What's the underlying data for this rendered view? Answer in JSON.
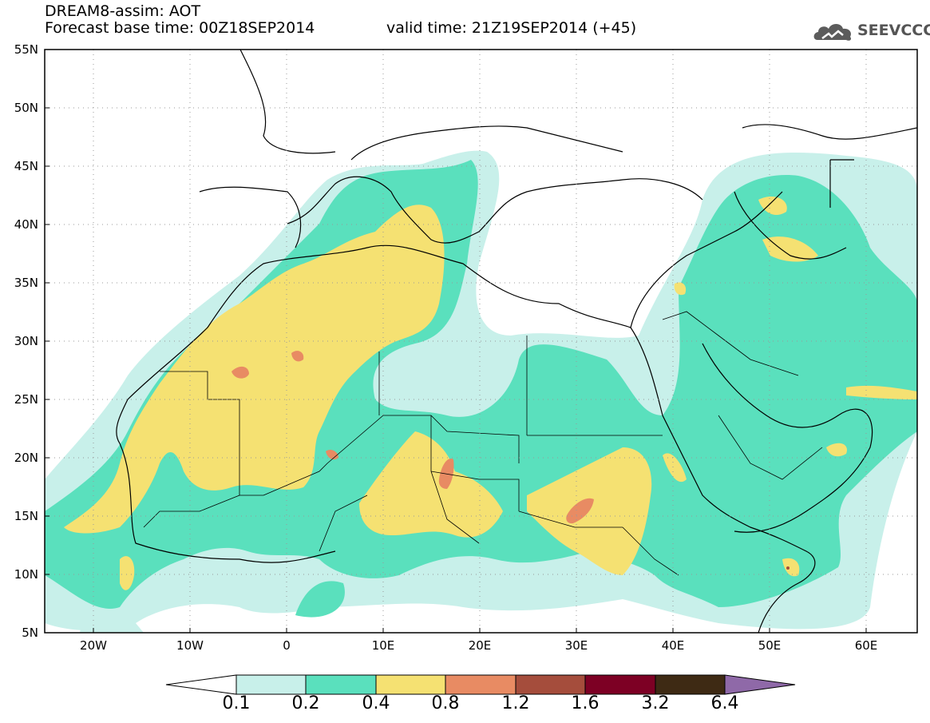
{
  "header": {
    "title": "DREAM8-assim: AOT",
    "base_time": "Forecast base time: 00Z18SEP2014",
    "valid_time": "valid time: 21Z19SEP2014 (+45)",
    "logo_text": "SEEVCCC",
    "logo_icon": "cloud-icon"
  },
  "axes": {
    "lat_labels": [
      "55N",
      "50N",
      "45N",
      "40N",
      "35N",
      "30N",
      "25N",
      "20N",
      "15N",
      "10N",
      "5N"
    ],
    "lon_labels": [
      "20W",
      "10W",
      "0",
      "10E",
      "20E",
      "30E",
      "40E",
      "50E",
      "60E"
    ]
  },
  "map": {
    "extent": {
      "lon": [
        -25,
        65
      ],
      "lat": [
        5,
        55
      ]
    },
    "field": "AOT",
    "colors": {
      "c01": "#c8f0ea",
      "c02": "#5ae0bd",
      "c04": "#f5e172",
      "c08": "#e88b63",
      "c12": "#a54d3c",
      "coast": "#000000",
      "grid": "#999999"
    }
  },
  "colorbar": {
    "labels": [
      "0.1",
      "0.2",
      "0.4",
      "0.8",
      "1.2",
      "1.6",
      "3.2",
      "6.4"
    ],
    "colors": [
      "#c8f0ea",
      "#5ae0bd",
      "#f5e172",
      "#e88b63",
      "#a54d3c",
      "#7d0024",
      "#3e2a14",
      "#8f69a8"
    ]
  }
}
